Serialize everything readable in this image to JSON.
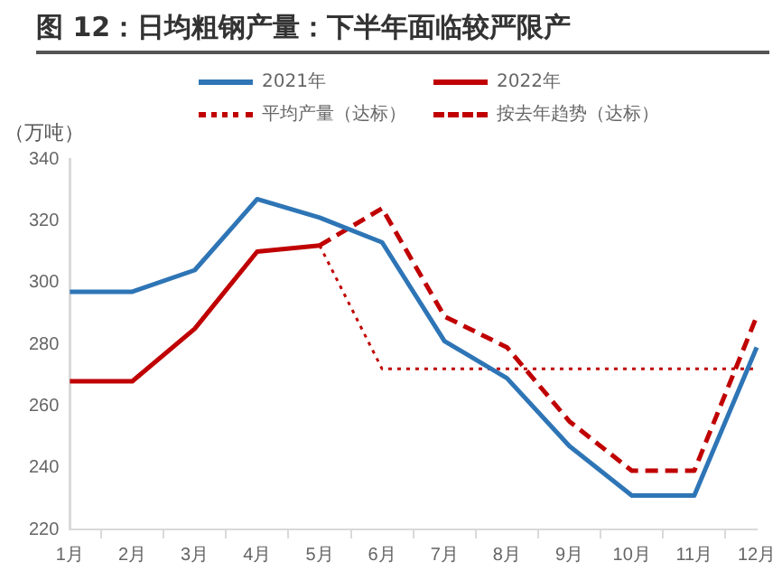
{
  "chart_data": {
    "type": "line",
    "title": "图 12：日均粗钢产量：下半年面临较严限产",
    "ylabel": "（万吨）",
    "categories": [
      "1月",
      "2月",
      "3月",
      "4月",
      "5月",
      "6月",
      "7月",
      "8月",
      "9月",
      "10月",
      "11月",
      "12月"
    ],
    "series": [
      {
        "name": "2021年",
        "color": "#2e75b6",
        "line_style": "solid",
        "values": [
          297,
          297,
          304,
          327,
          321,
          313,
          281,
          269,
          247,
          231,
          231,
          279
        ]
      },
      {
        "name": "2022年",
        "color": "#c00000",
        "line_style": "solid",
        "values": [
          268,
          268,
          285,
          310,
          312,
          null,
          null,
          null,
          null,
          null,
          null,
          null
        ]
      },
      {
        "name": "平均产量（达标）",
        "color": "#c00000",
        "line_style": "dotted",
        "values": [
          null,
          null,
          null,
          null,
          312,
          272,
          272,
          272,
          272,
          272,
          272,
          272
        ]
      },
      {
        "name": "按去年趋势（达标）",
        "color": "#c00000",
        "line_style": "dashed",
        "values": [
          null,
          null,
          null,
          null,
          312,
          324,
          289,
          279,
          255,
          239,
          239,
          289
        ]
      }
    ],
    "ylim": [
      220,
      340
    ],
    "yticks": [
      220,
      240,
      260,
      280,
      300,
      320,
      340
    ],
    "grid": false,
    "legend": "top",
    "marker": "none"
  }
}
